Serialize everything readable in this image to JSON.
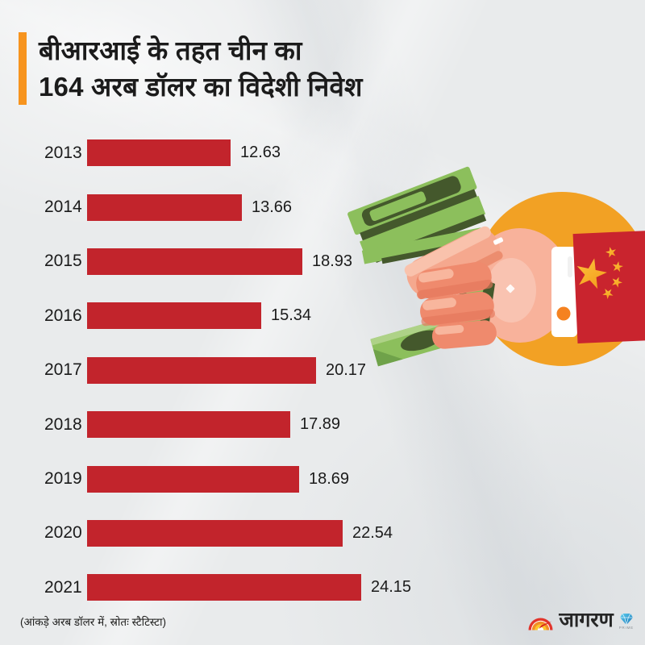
{
  "title": {
    "line1": "बीआरआई के तहत चीन का",
    "line2": "164 अरब डॉलर का विदेशी निवेश"
  },
  "chart_data": {
    "type": "bar",
    "orientation": "horizontal",
    "title": "बीआरआई के तहत चीन का 164 अरब डॉलर का विदेशी निवेश",
    "categories": [
      "2013",
      "2014",
      "2015",
      "2016",
      "2017",
      "2018",
      "2019",
      "2020",
      "2021"
    ],
    "values": [
      12.63,
      13.66,
      18.93,
      15.34,
      20.17,
      17.89,
      18.69,
      22.54,
      24.15
    ],
    "value_labels": [
      "12.63",
      "13.66",
      "18.93",
      "15.34",
      "20.17",
      "17.89",
      "18.69",
      "22.54",
      "24.15"
    ],
    "unit": "अरब डॉलर",
    "xlabel": "",
    "ylabel": "",
    "xlim": [
      0,
      24.15
    ],
    "grid": false,
    "legend": false,
    "data_labels": true
  },
  "footnote": "(आंकड़े अरब डॉलर में, स्रोतः स्टैटिस्टा)",
  "brand": {
    "name": "जागरण",
    "prime": "PRIME"
  },
  "illustration": {
    "name": "fist-holding-dollar-bills-china-flag-cuff"
  },
  "colors": {
    "background": "#e9ebec",
    "bar": "#c2242c",
    "accent_orange": "#f7941e",
    "circle_orange": "#f2a124",
    "flag_red": "#c9242e",
    "star_gold": "#f8b62d",
    "money_green": "#8cbf5c",
    "money_dark_green": "#44582c",
    "skin": "#f8b29b",
    "skin_shadow": "#ef8a6d",
    "text": "#1b1b1b"
  }
}
